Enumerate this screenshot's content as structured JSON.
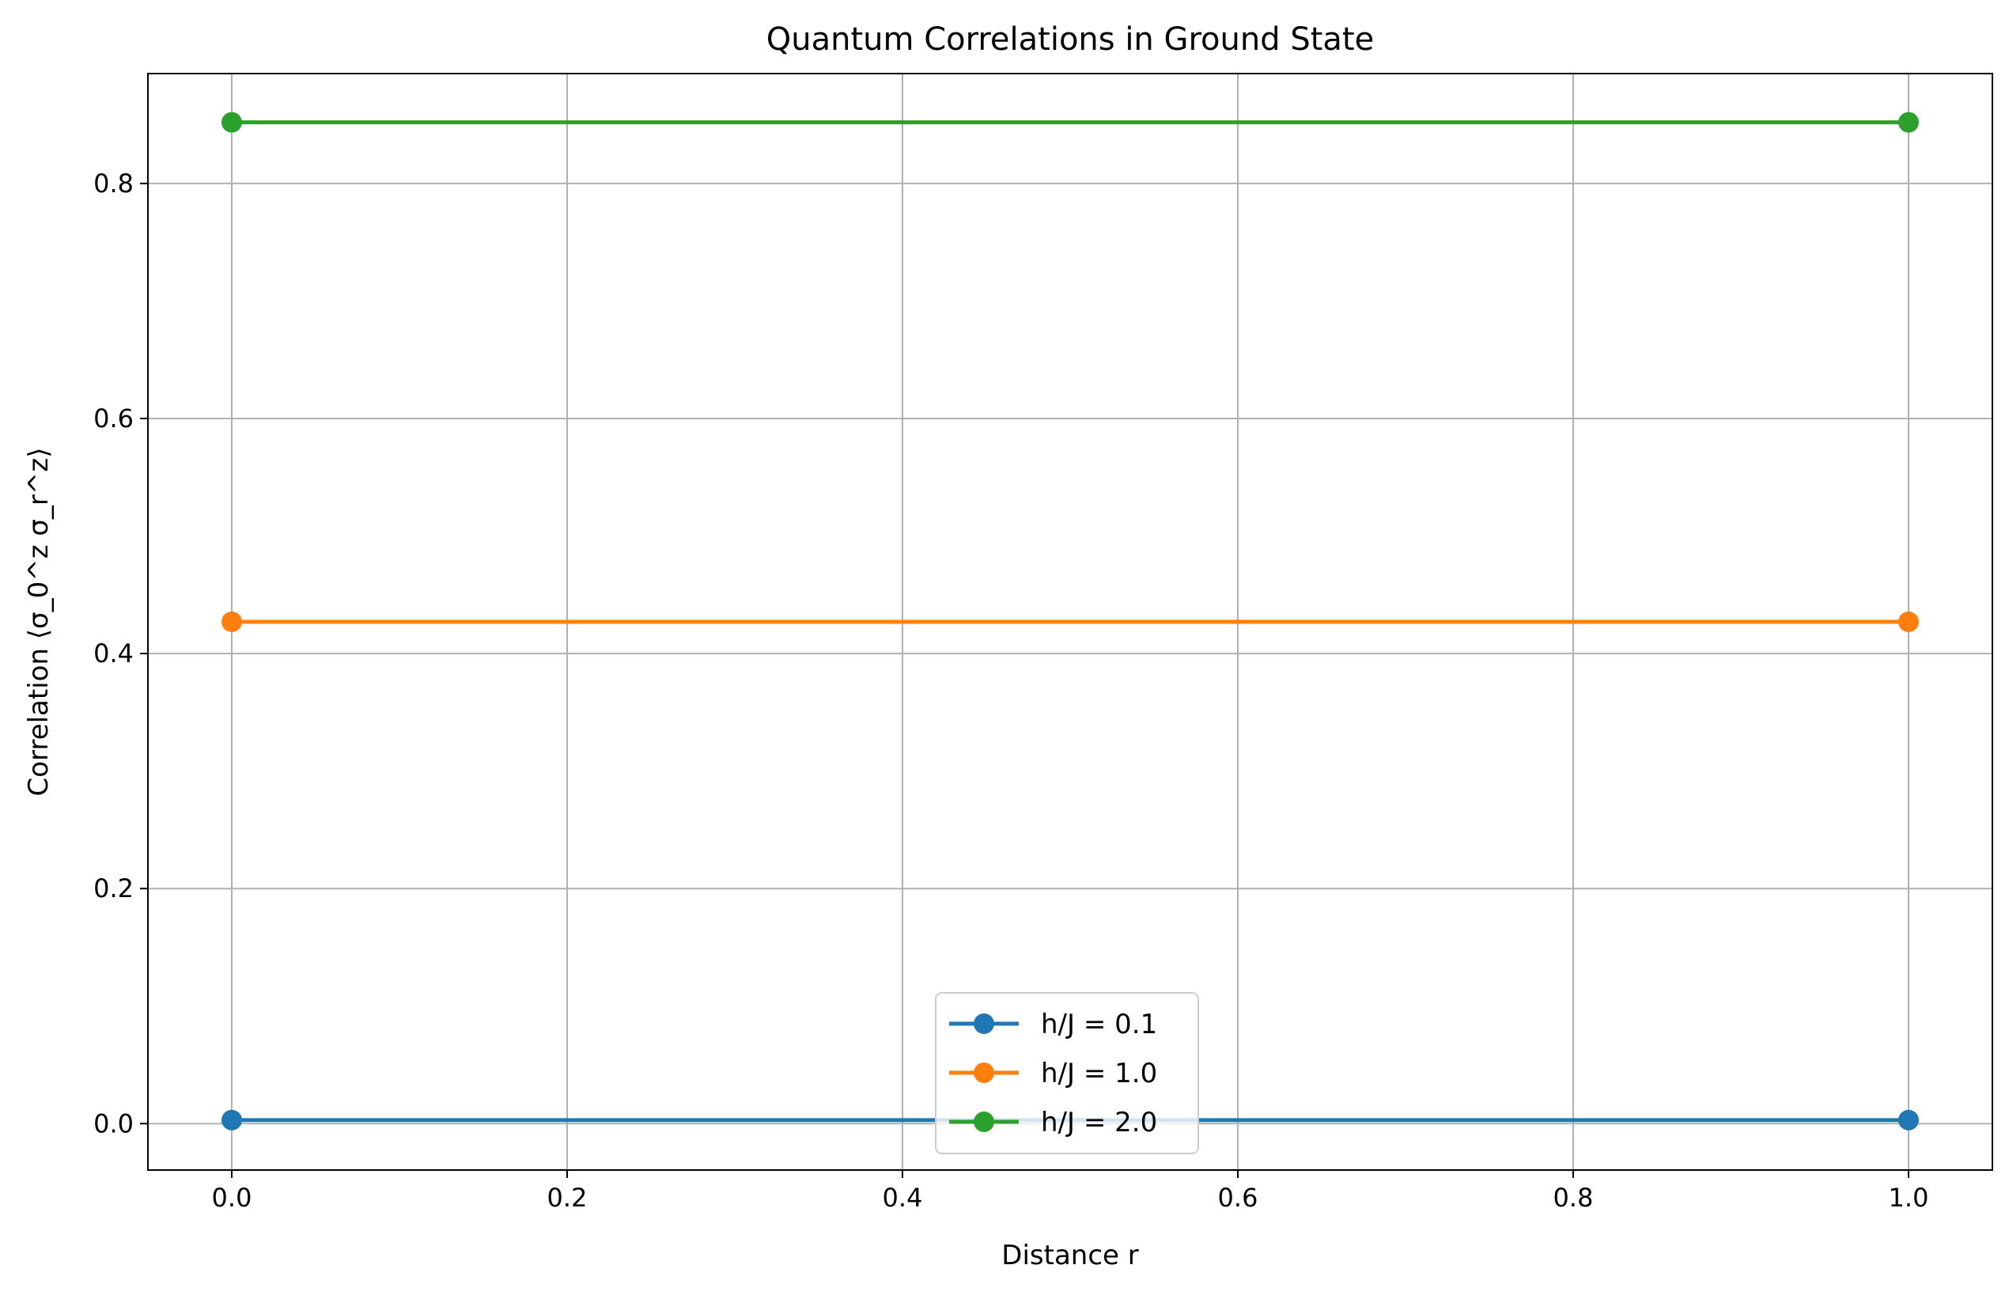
{
  "chart_data": {
    "type": "line",
    "title": "Quantum Correlations in Ground State",
    "xlabel": "Distance r",
    "ylabel": "Correlation ⟨σ_0^z σ_r^z⟩",
    "x": [
      0.0,
      1.0
    ],
    "xlim": [
      -0.05,
      1.05
    ],
    "ylim": [
      -0.0395,
      0.8935
    ],
    "xticks": [
      0.0,
      0.2,
      0.4,
      0.6,
      0.8,
      1.0
    ],
    "xtick_labels": [
      "0.0",
      "0.2",
      "0.4",
      "0.6",
      "0.8",
      "1.0"
    ],
    "yticks": [
      0.0,
      0.2,
      0.4,
      0.6,
      0.8
    ],
    "ytick_labels": [
      "0.0",
      "0.2",
      "0.4",
      "0.6",
      "0.8"
    ],
    "grid": true,
    "legend_position": "lower-center",
    "series": [
      {
        "name": "h/J = 0.1",
        "values": [
          0.003,
          0.003
        ],
        "color": "#1f77b4"
      },
      {
        "name": "h/J = 1.0",
        "values": [
          0.427,
          0.427
        ],
        "color": "#ff7f0e"
      },
      {
        "name": "h/J = 2.0",
        "values": [
          0.852,
          0.852
        ],
        "color": "#2ca02c"
      }
    ]
  }
}
